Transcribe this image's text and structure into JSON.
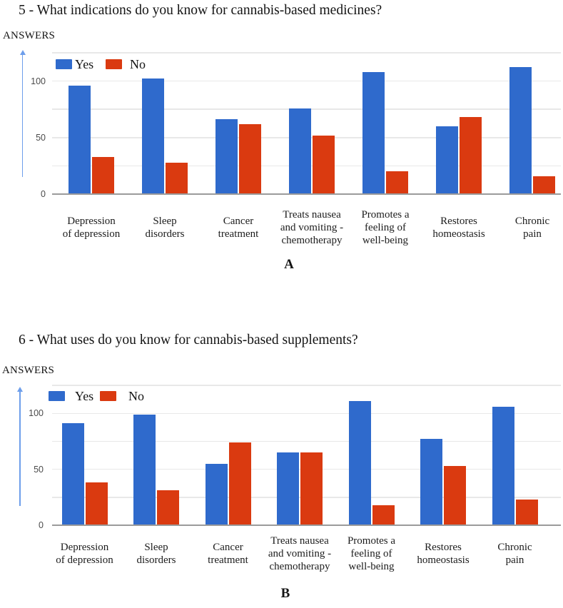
{
  "figure": {
    "background": "#ffffff",
    "panel_captions": [
      "A",
      "B"
    ]
  },
  "colors": {
    "yes_bar": "#2f6acc",
    "no_bar": "#da3a10",
    "axis_arrow": "#6d9eeb",
    "gridline": "#e8e8e8",
    "baseline": "#9b9b9b",
    "tick_text": "#4b4b4b",
    "label_text": "#1c1c1c"
  },
  "chart_data": [
    {
      "type": "bar",
      "panel_label": "A",
      "title": "5 - What indications do you know for cannabis-based medicines?",
      "ylabel": "ANSWERS",
      "xlabel": "",
      "categories": [
        "Depression\nof depression",
        "Sleep\ndisorders",
        "Cancer\ntreatment",
        "Treats nausea\nand vomiting -\nchemotherapy",
        "Promotes a\nfeeling of\nwell-being",
        "Restores\nhomeostasis",
        "Chronic\npain"
      ],
      "series": [
        {
          "name": "Yes",
          "color": "#2f6acc",
          "values": [
            96,
            102,
            66,
            76,
            108,
            60,
            112
          ]
        },
        {
          "name": "No",
          "color": "#da3a10",
          "values": [
            33,
            28,
            62,
            52,
            20,
            68,
            16
          ]
        }
      ],
      "ylim": [
        0,
        125
      ],
      "y_ticks": [
        0,
        50,
        100
      ],
      "grid_values": [
        25,
        50,
        75,
        100,
        125
      ],
      "grid": "on",
      "legend_position": "top-left"
    },
    {
      "type": "bar",
      "panel_label": "B",
      "title": "6 - What uses do you know for cannabis-based supplements?",
      "ylabel": "ANSWERS",
      "xlabel": "",
      "categories": [
        "Depression\nof depression",
        "Sleep\ndisorders",
        "Cancer\ntreatment",
        "Treats nausea\nand vomiting -\nchemotherapy",
        "Promotes a\nfeeling of\nwell-being",
        "Restores\nhomeostasis",
        "Chronic\npain"
      ],
      "series": [
        {
          "name": "Yes",
          "color": "#2f6acc",
          "values": [
            91,
            99,
            55,
            65,
            111,
            77,
            106
          ]
        },
        {
          "name": "No",
          "color": "#da3a10",
          "values": [
            38,
            31,
            74,
            65,
            18,
            53,
            23
          ]
        }
      ],
      "ylim": [
        0,
        125
      ],
      "y_ticks": [
        0,
        50,
        100
      ],
      "grid_values": [
        25,
        50,
        75,
        100,
        125
      ],
      "grid": "on",
      "legend_position": "top-left"
    }
  ]
}
